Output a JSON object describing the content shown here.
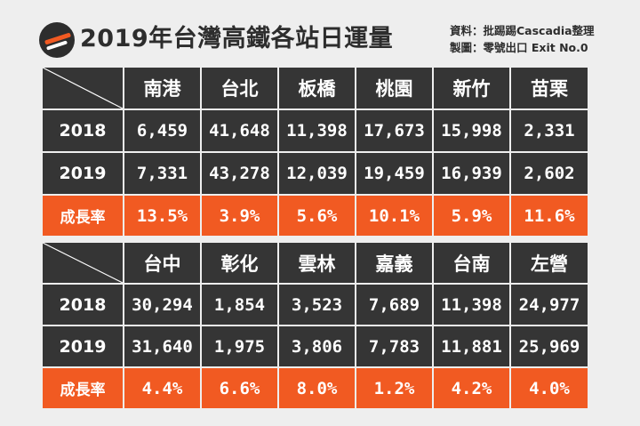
{
  "header": {
    "title": "2019年台灣高鐵各站日運量",
    "source": "資料：批踢踢Cascadia整理",
    "maker": "製圖：零號出口 Exit No.0",
    "logo_icon": "exit-no0-logo-icon"
  },
  "colors": {
    "cell": "#353535",
    "accent": "#f15a22",
    "background": "#eeeeee"
  },
  "chart_data": {
    "type": "table",
    "title": "2019年台灣高鐵各站日運量",
    "tables": [
      {
        "stations": [
          "南港",
          "台北",
          "板橋",
          "桃園",
          "新竹",
          "苗栗"
        ],
        "rows": [
          {
            "label": "2018",
            "values": [
              "6,459",
              "41,648",
              "11,398",
              "17,673",
              "15,998",
              "2,331"
            ]
          },
          {
            "label": "2019",
            "values": [
              "7,331",
              "43,278",
              "12,039",
              "19,459",
              "16,939",
              "2,602"
            ]
          },
          {
            "label": "成長率",
            "values": [
              "13.5%",
              "3.9%",
              "5.6%",
              "10.1%",
              "5.9%",
              "11.6%"
            ]
          }
        ]
      },
      {
        "stations": [
          "台中",
          "彰化",
          "雲林",
          "嘉義",
          "台南",
          "左營"
        ],
        "rows": [
          {
            "label": "2018",
            "values": [
              "30,294",
              "1,854",
              "3,523",
              "7,689",
              "11,398",
              "24,977"
            ]
          },
          {
            "label": "2019",
            "values": [
              "31,640",
              "1,975",
              "3,806",
              "7,783",
              "11,881",
              "25,969"
            ]
          },
          {
            "label": "成長率",
            "values": [
              "4.4%",
              "6.6%",
              "8.0%",
              "1.2%",
              "4.2%",
              "4.0%"
            ]
          }
        ]
      }
    ]
  }
}
